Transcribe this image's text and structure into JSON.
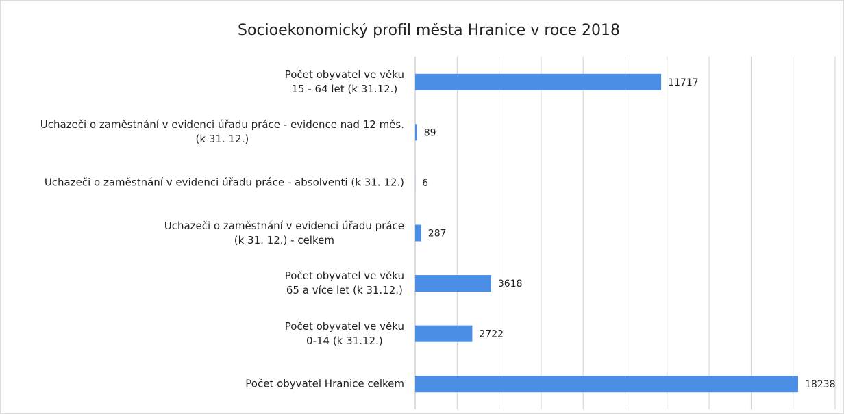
{
  "chart_data": {
    "type": "bar",
    "orientation": "horizontal",
    "title": "Socioekonomický profil města Hranice v roce 2018",
    "categories": [
      "Počet obyvatel ve věku\n15 - 64 let (k 31.12.)",
      "Uchazeči o zaměstnání v evidenci úřadu práce - evidence nad 12 měs.\n(k 31. 12.)",
      "Uchazeči o zaměstnání v evidenci úřadu práce - absolventi (k 31. 12.)",
      "Uchazeči o zaměstnání v evidenci úřadu práce\n(k 31. 12.) - celkem",
      "Počet obyvatel ve věku\n65 a více let (k 31.12.)",
      "Počet obyvatel ve věku\n0-14 (k 31.12.)",
      "Počet obyvatel Hranice celkem"
    ],
    "values": [
      11717,
      89,
      6,
      287,
      3618,
      2722,
      18238
    ],
    "color": "#4a8ee6",
    "xlim": [
      0,
      20000
    ],
    "xticks": [
      0,
      2000,
      4000,
      6000,
      8000,
      10000,
      12000,
      14000,
      16000,
      18000,
      20000
    ],
    "grid": true
  }
}
